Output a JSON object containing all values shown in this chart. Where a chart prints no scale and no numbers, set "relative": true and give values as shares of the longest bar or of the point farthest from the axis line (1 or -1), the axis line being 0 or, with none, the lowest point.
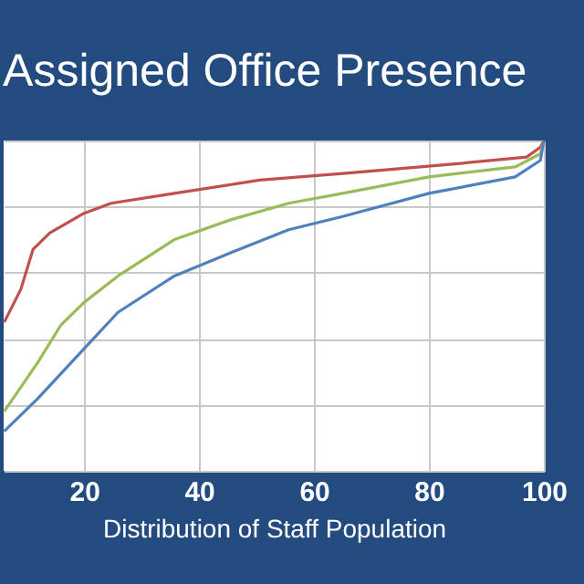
{
  "chart_data": {
    "type": "line",
    "title": "Assigned Office Presence",
    "xlabel": "Distribution of Staff Population",
    "relative": true,
    "grid": true,
    "xlim": [
      6,
      100
    ],
    "xticks": [
      20,
      40,
      60,
      80,
      100
    ],
    "tick_labels": "x",
    "series": [
      {
        "color": "#c0504d",
        "x": [
          6.1,
          9,
          11.1,
          14,
          20,
          24.7,
          35.7,
          50.5,
          65,
          85,
          97,
          99.4,
          100
        ],
        "values": [
          0.45,
          0.55,
          0.67,
          0.72,
          0.78,
          0.81,
          0.84,
          0.88,
          0.9,
          0.93,
          0.95,
          0.98,
          1
        ]
      },
      {
        "color": "#9bbb59",
        "x": [
          6.1,
          12,
          15.9,
          20,
          25.9,
          35.7,
          45.5,
          55.6,
          65,
          80,
          95,
          99.4,
          100
        ],
        "values": [
          0.18,
          0.33,
          0.44,
          0.51,
          0.59,
          0.7,
          0.76,
          0.81,
          0.84,
          0.89,
          0.92,
          0.96,
          1
        ]
      },
      {
        "color": "#4f81bd",
        "x": [
          6.1,
          12,
          20,
          25.9,
          35.7,
          45.5,
          55.6,
          65,
          80,
          95,
          99.4,
          100
        ],
        "values": [
          0.12,
          0.22,
          0.37,
          0.48,
          0.59,
          0.66,
          0.73,
          0.77,
          0.84,
          0.89,
          0.94,
          1
        ]
      }
    ]
  }
}
